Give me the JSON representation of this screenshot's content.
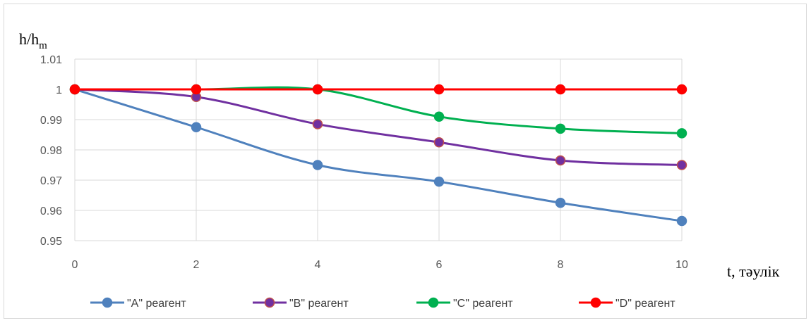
{
  "chart_data": {
    "type": "line",
    "ylabel_main": "h/h",
    "ylabel_sub": "m",
    "xlabel": "t, тәулік",
    "x": [
      0,
      2,
      4,
      6,
      8,
      10
    ],
    "xticks": [
      "0",
      "2",
      "4",
      "6",
      "8",
      "10"
    ],
    "ylim": [
      0.95,
      1.01
    ],
    "yticks": [
      "0.95",
      "0.96",
      "0.97",
      "0.98",
      "0.99",
      "1",
      "1.01"
    ],
    "grid": true,
    "legend": "bottom",
    "series": [
      {
        "name": "\"A\" реагент",
        "color": "#4f81bd",
        "marker_edge": "#4f81bd",
        "values": [
          1.0,
          0.9875,
          0.975,
          0.9695,
          0.9625,
          0.9565
        ]
      },
      {
        "name": "\"B\" реагент",
        "color": "#7030a0",
        "marker_edge": "#c0504d",
        "values": [
          1.0,
          0.9975,
          0.9885,
          0.9825,
          0.9765,
          0.975
        ]
      },
      {
        "name": "\"C\" реагент",
        "color": "#00b050",
        "marker_edge": "#00b050",
        "values": [
          1.0,
          1.0,
          1.0,
          0.991,
          0.987,
          0.9855
        ]
      },
      {
        "name": "\"D\" реагент",
        "color": "#ff0000",
        "marker_edge": "#ff0000",
        "values": [
          1.0,
          1.0,
          1.0,
          1.0,
          1.0,
          1.0
        ]
      }
    ]
  }
}
